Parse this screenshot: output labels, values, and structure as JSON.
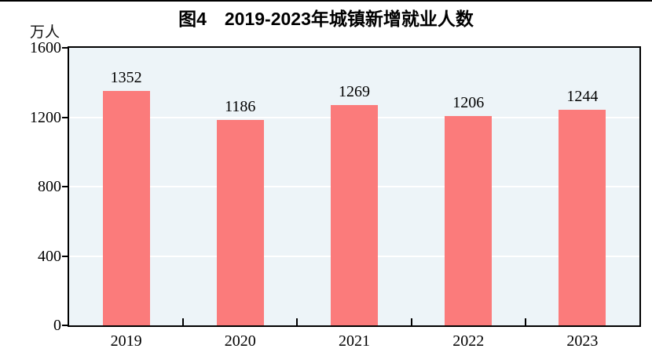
{
  "chart_data": {
    "type": "bar",
    "title": "图4　2019-2023年城镇新增就业人数",
    "unit_label": "万人",
    "categories": [
      "2019",
      "2020",
      "2021",
      "2022",
      "2023"
    ],
    "values": [
      1352,
      1186,
      1269,
      1206,
      1244
    ],
    "ylim": [
      0,
      1600
    ],
    "yticks": [
      0,
      400,
      800,
      1200,
      1600
    ],
    "data_labels": [
      1352,
      1186,
      1269,
      1206,
      1244
    ],
    "legend": null,
    "grid": "horizontal-white",
    "colors": {
      "bar_fill": "#FB7B7B",
      "plot_background": "#EDF4F8",
      "gridline": "#FFFFFF",
      "axis": "#000000",
      "text": "#000000"
    }
  }
}
